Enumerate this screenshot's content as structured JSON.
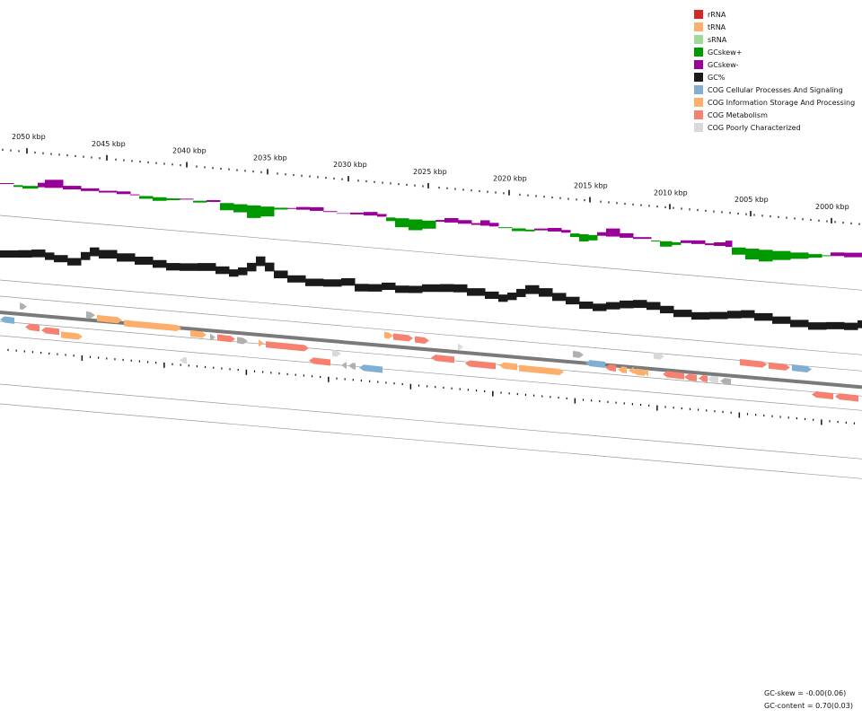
{
  "legend": [
    {
      "label": "rRNA",
      "color": "#d62728"
    },
    {
      "label": "tRNA",
      "color": "#fdae6b"
    },
    {
      "label": "sRNA",
      "color": "#a1d99b"
    },
    {
      "label": "GCskew+",
      "color": "#009900"
    },
    {
      "label": "GCskew-",
      "color": "#990099"
    },
    {
      "label": "GC%",
      "color": "#1a1a1a"
    },
    {
      "label": "COG Cellular Processes And Signaling",
      "color": "#7fb0d4"
    },
    {
      "label": "COG Information Storage And Processing",
      "color": "#fdae6b"
    },
    {
      "label": "COG Metabolism",
      "color": "#f88070"
    },
    {
      "label": "COG Poorly Characterized",
      "color": "#d9d9d9"
    }
  ],
  "ruler": {
    "unit": "kbp",
    "labels": [
      "2050 kbp",
      "2045 kbp",
      "2040 kbp",
      "2035 kbp",
      "2030 kbp",
      "2025 kbp",
      "2020 kbp",
      "2015 kbp",
      "2010 kbp",
      "2005 kbp",
      "2000 kbp"
    ]
  },
  "stats": {
    "gc_skew": "GC-skew = -0.00(0.06)",
    "gc_content": "GC-content = 0.70(0.03)"
  },
  "colors": {
    "backbone": "#7a7a7a",
    "guide": "#9a9a9a",
    "tick": "#111111",
    "poorly_dark": "#b0b0b0"
  }
}
